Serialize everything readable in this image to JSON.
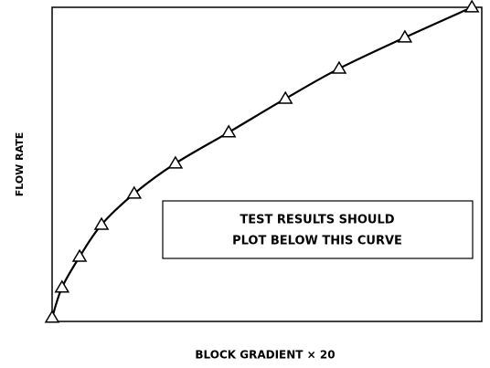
{
  "chart_data": {
    "type": "line",
    "xlabel": "BLOCK GRADIENT × 20",
    "ylabel": "FLOW RATE",
    "annotation": [
      "TEST RESULTS SHOULD",
      "PLOT BELOW THIS CURVE"
    ],
    "x": [
      0,
      2.3,
      6.4,
      11.5,
      19.1,
      28.7,
      41.1,
      54.3,
      66.8,
      82.1,
      97.7
    ],
    "series": [
      {
        "color": "#000000",
        "marker": "triangle",
        "values": [
          1.2,
          10.8,
          20.6,
          30.8,
          40.7,
          50.3,
          60.2,
          70.9,
          80.5,
          90.4,
          100
        ]
      }
    ],
    "xlim": [
      0,
      100
    ],
    "ylim": [
      0,
      100
    ],
    "grid": false
  }
}
